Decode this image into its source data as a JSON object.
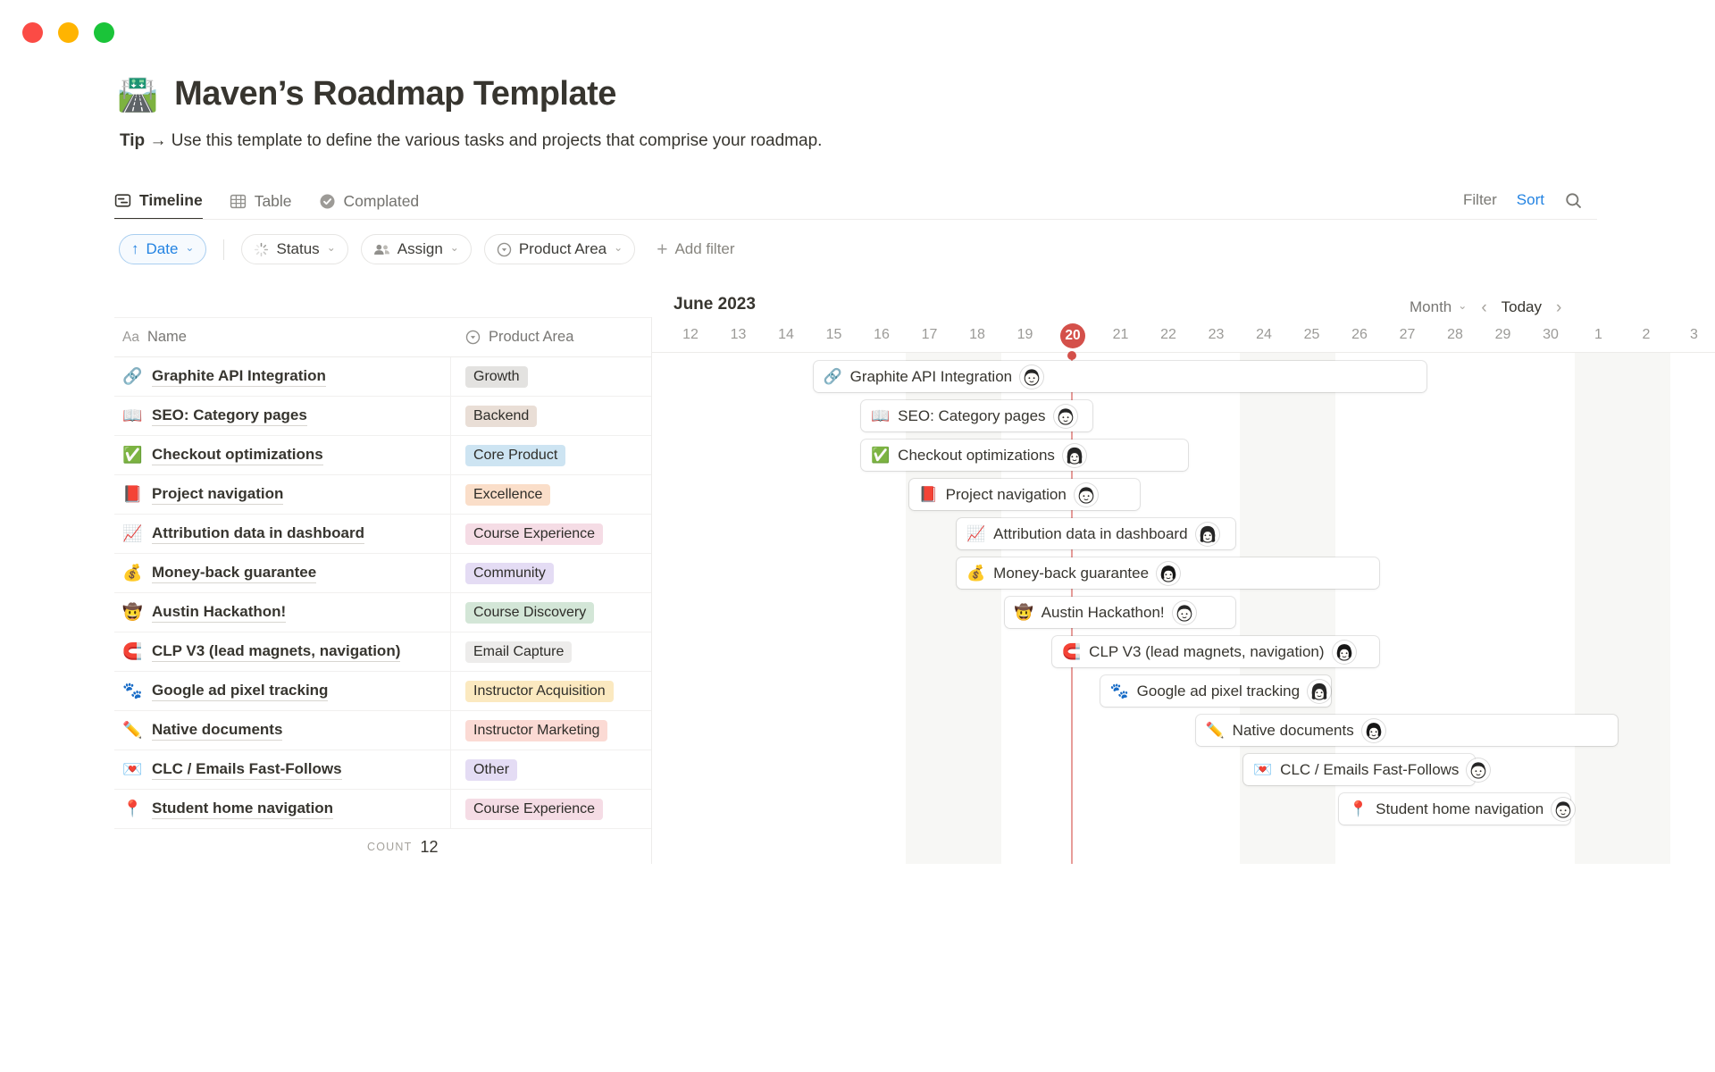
{
  "window": {
    "traffic_lights": [
      "close",
      "minimize",
      "zoom"
    ]
  },
  "page": {
    "emoji": "🛣️",
    "title": "Maven’s Roadmap Template",
    "tip_label": "Tip",
    "tip_arrow": "→",
    "tip_text": "Use this template to define the various tasks and projects that comprise your roadmap."
  },
  "tabs": [
    {
      "label": "Timeline",
      "icon": "timeline-icon",
      "active": true
    },
    {
      "label": "Table",
      "icon": "table-icon",
      "active": false
    },
    {
      "label": "Complated",
      "icon": "check-circle-icon",
      "active": false
    }
  ],
  "toolbar": {
    "filter_label": "Filter",
    "sort_label": "Sort"
  },
  "ui": {
    "chevron_down": "⌄",
    "plus": "+",
    "prev": "‹",
    "next": "›",
    "arrow_up": "↑",
    "aa": "Aa"
  },
  "filter_bar": {
    "sort_chip": {
      "label": "Date"
    },
    "chips": [
      {
        "icon": "status-icon",
        "label": "Status"
      },
      {
        "icon": "assign-icon",
        "label": "Assign"
      },
      {
        "icon": "select-circle-icon",
        "label": "Product Area"
      }
    ],
    "add_filter_label": "Add filter"
  },
  "table": {
    "columns": [
      {
        "icon": "text-type-icon",
        "label": "Name"
      },
      {
        "icon": "select-circle-icon",
        "label": "Product Area"
      }
    ],
    "rows": [
      {
        "emoji": "🔗",
        "name": "Graphite API Integration",
        "area": "Growth",
        "color": "gray"
      },
      {
        "emoji": "📖",
        "name": "SEO: Category pages",
        "area": "Backend",
        "color": "brown"
      },
      {
        "emoji": "✅",
        "name": "Checkout optimizations",
        "area": "Core Product",
        "color": "blue"
      },
      {
        "emoji": "📕",
        "name": "Project navigation",
        "area": "Excellence",
        "color": "orange"
      },
      {
        "emoji": "📈",
        "name": "Attribution data in dashboard",
        "area": "Course Experience",
        "color": "pink"
      },
      {
        "emoji": "💰",
        "name": "Money-back guarantee",
        "area": "Community",
        "color": "purple"
      },
      {
        "emoji": "🤠",
        "name": "Austin Hackathon!",
        "area": "Course Discovery",
        "color": "green"
      },
      {
        "emoji": "🧲",
        "name": "CLP V3 (lead magnets, navigation)",
        "area": "Email Capture",
        "color": "light_gray"
      },
      {
        "emoji": "🐾",
        "name": "Google ad pixel tracking",
        "area": "Instructor Acquisition",
        "color": "yellow"
      },
      {
        "emoji": "✏️",
        "name": "Native documents",
        "area": "Instructor Marketing",
        "color": "red"
      },
      {
        "emoji": "💌",
        "name": "CLC / Emails Fast-Follows",
        "area": "Other",
        "color": "purple"
      },
      {
        "emoji": "📍",
        "name": "Student home navigation",
        "area": "Course Experience",
        "color": "pink"
      }
    ],
    "count_label": "COUNT",
    "count_value": "12"
  },
  "timeline": {
    "month_title": "June 2023",
    "zoom_label": "Month",
    "today_label": "Today",
    "days": [
      "12",
      "13",
      "14",
      "15",
      "16",
      "17",
      "18",
      "19",
      "20",
      "21",
      "22",
      "23",
      "24",
      "25",
      "26",
      "27",
      "28",
      "29",
      "30",
      "1",
      "2",
      "3"
    ],
    "today_index": 8,
    "weekend_indices": [
      5,
      6,
      12,
      13,
      19,
      20
    ],
    "tasks": [
      {
        "emoji": "🔗",
        "label": "Graphite API Integration",
        "start": "Jun 15",
        "end": "Jun 27",
        "start_index": 3,
        "end_index": 15,
        "avatar": "man"
      },
      {
        "emoji": "📖",
        "label": "SEO: Category pages",
        "start": "Jun 16",
        "end": "Jun 20",
        "start_index": 4,
        "end_index": 8,
        "avatar": "man"
      },
      {
        "emoji": "✅",
        "label": "Checkout optimizations",
        "start": "Jun 16",
        "end": "Jun 22",
        "start_index": 4,
        "end_index": 10,
        "avatar": "woman"
      },
      {
        "emoji": "📕",
        "label": "Project navigation",
        "start": "Jun 17",
        "end": "Jun 21",
        "start_index": 5,
        "end_index": 9,
        "avatar": "man"
      },
      {
        "emoji": "📈",
        "label": "Attribution data in dashboard",
        "start": "Jun 18",
        "end": "Jun 23",
        "start_index": 6,
        "end_index": 11,
        "avatar": "woman"
      },
      {
        "emoji": "💰",
        "label": "Money-back guarantee",
        "start": "Jun 18",
        "end": "Jun 26",
        "start_index": 6,
        "end_index": 14,
        "avatar": "woman-bob"
      },
      {
        "emoji": "🤠",
        "label": "Austin Hackathon!",
        "start": "Jun 19",
        "end": "Jun 23",
        "start_index": 7,
        "end_index": 11,
        "avatar": "man"
      },
      {
        "emoji": "🧲",
        "label": "CLP V3 (lead magnets, navigation)",
        "start": "Jun 20",
        "end": "Jun 26",
        "start_index": 8,
        "end_index": 14,
        "avatar": "woman-bob"
      },
      {
        "emoji": "🐾",
        "label": "Google ad pixel tracking",
        "start": "Jun 21",
        "end": "Jun 25",
        "start_index": 9,
        "end_index": 13,
        "avatar": "woman"
      },
      {
        "emoji": "✏️",
        "label": "Native documents",
        "start": "Jun 23",
        "end": "Jul 1",
        "start_index": 11,
        "end_index": 19,
        "avatar": "woman-bob"
      },
      {
        "emoji": "💌",
        "label": "CLC / Emails Fast-Follows",
        "start": "Jun 24",
        "end": "Jun 28",
        "start_index": 12,
        "end_index": 16,
        "avatar": "man"
      },
      {
        "emoji": "📍",
        "label": "Student home navigation",
        "start": "Jun 26",
        "end": "Jun 30",
        "start_index": 14,
        "end_index": 18,
        "avatar": "man"
      }
    ]
  },
  "colors": {
    "accent_blue": "#2383E2",
    "today_red": "#D4504A",
    "traffic": [
      "#FB4B45",
      "#FFB401",
      "#1AC439"
    ],
    "tags": {
      "gray": "#E3E2E0",
      "brown": "#E9DED6",
      "blue": "#CDE4F2",
      "orange": "#FADEC9",
      "pink": "#F5DCE5",
      "purple": "#E4DCF4",
      "green": "#D3E6D7",
      "light_gray": "#EDECEB",
      "yellow": "#FBE9C0",
      "red": "#FBDAD4"
    }
  }
}
